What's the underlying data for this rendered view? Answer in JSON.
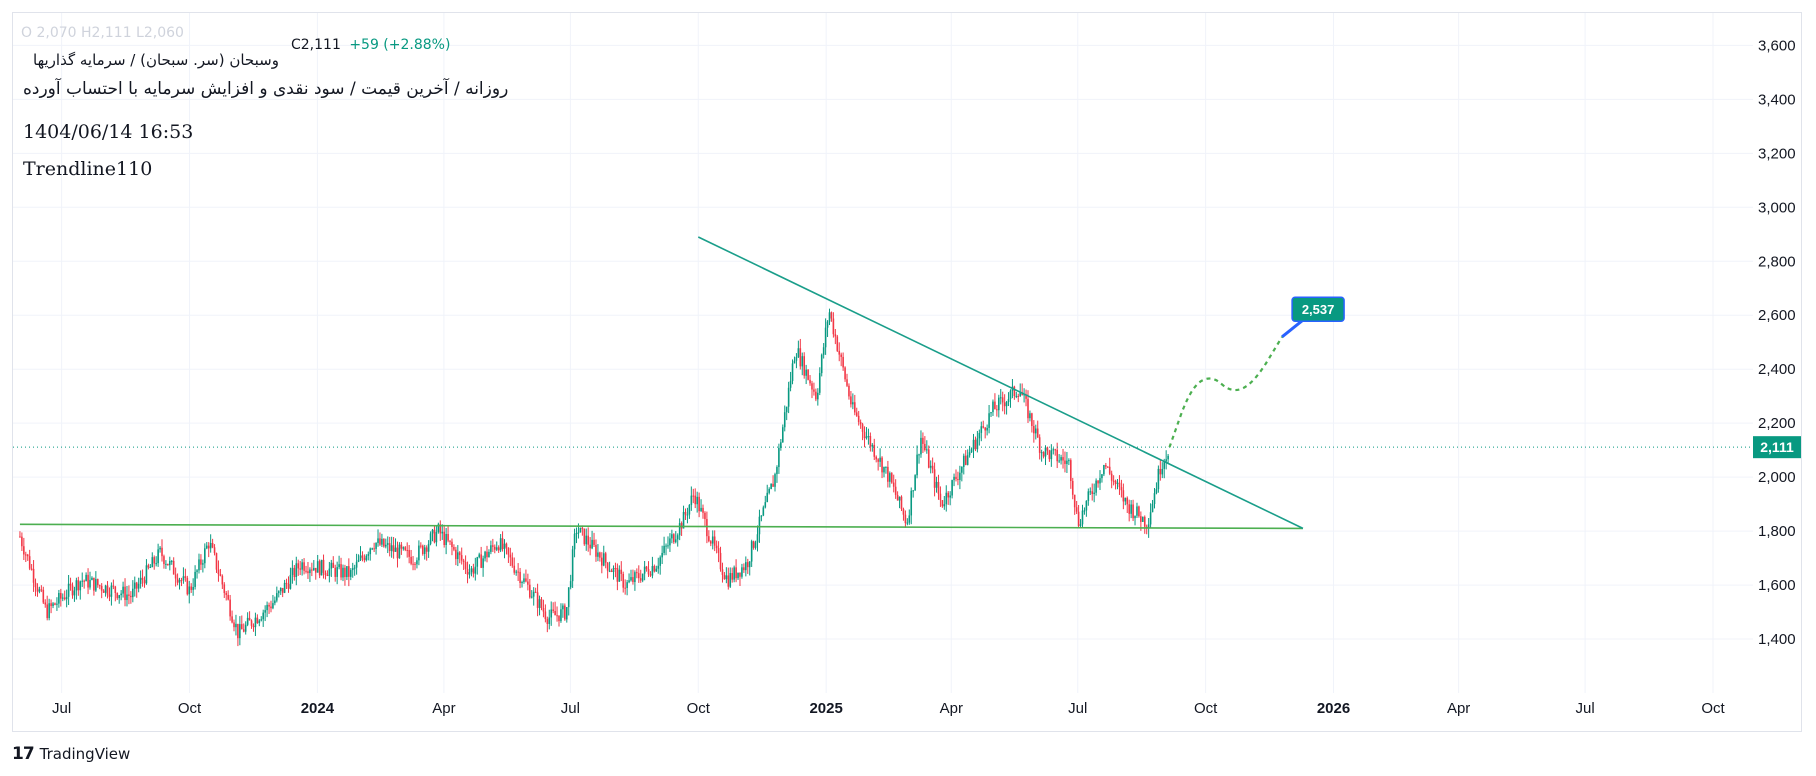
{
  "header": {
    "symbol_title": "وسبحان (سر. سبحان) / سرمایه گذاریها",
    "ohlc_faded": "O 2,070 H2,111 L2,060",
    "close_label": "C2,111",
    "change": "+59 (+2.88%)",
    "subtitle": "روزانه / آخرین قیمت / سود نقدی و افزایش سرمایه با احتساب آورده",
    "timestamp": "1404/06/14 16:53",
    "author": "Trendline110"
  },
  "branding": {
    "logo_mark": "17",
    "logo_text": "TradingView"
  },
  "colors": {
    "up": "#089981",
    "down": "#f23645",
    "trend": "#1a9e8a",
    "support": "#4caf50",
    "forecast": "#4caf50",
    "price_tag": "#089981",
    "target_tag": "#089981",
    "target_border": "#2962ff",
    "grid": "#f0f3fa"
  },
  "chart_data": {
    "type": "candlestick",
    "title": "",
    "y_axis": {
      "ticks": [
        1400,
        1600,
        1800,
        2000,
        2200,
        2400,
        2600,
        2800,
        3000,
        3200,
        3400,
        3600
      ],
      "range": [
        1200,
        3720
      ]
    },
    "x_axis": {
      "ticks": [
        {
          "label": "Jul",
          "date": "2023-07-01",
          "bold": false
        },
        {
          "label": "Oct",
          "date": "2023-10-01",
          "bold": false
        },
        {
          "label": "2024",
          "date": "2024-01-01",
          "bold": true
        },
        {
          "label": "Apr",
          "date": "2024-04-01",
          "bold": false
        },
        {
          "label": "Jul",
          "date": "2024-07-01",
          "bold": false
        },
        {
          "label": "Oct",
          "date": "2024-10-01",
          "bold": false
        },
        {
          "label": "2025",
          "date": "2025-01-01",
          "bold": true
        },
        {
          "label": "Apr",
          "date": "2025-04-01",
          "bold": false
        },
        {
          "label": "Jul",
          "date": "2025-07-01",
          "bold": false
        },
        {
          "label": "Oct",
          "date": "2025-10-01",
          "bold": false
        },
        {
          "label": "2026",
          "date": "2026-01-01",
          "bold": true
        },
        {
          "label": "Apr",
          "date": "2026-04-01",
          "bold": false
        },
        {
          "label": "Jul",
          "date": "2026-07-01",
          "bold": false
        },
        {
          "label": "Oct",
          "date": "2026-10-01",
          "bold": false
        }
      ]
    },
    "price_path": [
      {
        "date": "2023-06-01",
        "price": 1780
      },
      {
        "date": "2023-06-20",
        "price": 1500
      },
      {
        "date": "2023-07-15",
        "price": 1620
      },
      {
        "date": "2023-08-20",
        "price": 1560
      },
      {
        "date": "2023-09-10",
        "price": 1720
      },
      {
        "date": "2023-10-01",
        "price": 1580
      },
      {
        "date": "2023-10-15",
        "price": 1760
      },
      {
        "date": "2023-11-05",
        "price": 1420
      },
      {
        "date": "2023-12-01",
        "price": 1540
      },
      {
        "date": "2023-12-20",
        "price": 1680
      },
      {
        "date": "2024-01-25",
        "price": 1640
      },
      {
        "date": "2024-02-10",
        "price": 1760
      },
      {
        "date": "2024-03-10",
        "price": 1700
      },
      {
        "date": "2024-03-28",
        "price": 1800
      },
      {
        "date": "2024-04-20",
        "price": 1650
      },
      {
        "date": "2024-05-10",
        "price": 1760
      },
      {
        "date": "2024-06-15",
        "price": 1480
      },
      {
        "date": "2024-06-28",
        "price": 1500
      },
      {
        "date": "2024-07-05",
        "price": 1810
      },
      {
        "date": "2024-08-10",
        "price": 1600
      },
      {
        "date": "2024-09-01",
        "price": 1680
      },
      {
        "date": "2024-09-20",
        "price": 1840
      },
      {
        "date": "2024-09-28",
        "price": 1940
      },
      {
        "date": "2024-10-15",
        "price": 1700
      },
      {
        "date": "2024-10-22",
        "price": 1620
      },
      {
        "date": "2024-11-05",
        "price": 1680
      },
      {
        "date": "2024-11-25",
        "price": 2000
      },
      {
        "date": "2024-12-10",
        "price": 2480
      },
      {
        "date": "2024-12-25",
        "price": 2300
      },
      {
        "date": "2025-01-03",
        "price": 2620
      },
      {
        "date": "2025-01-20",
        "price": 2250
      },
      {
        "date": "2025-02-15",
        "price": 2000
      },
      {
        "date": "2025-02-28",
        "price": 1830
      },
      {
        "date": "2025-03-10",
        "price": 2150
      },
      {
        "date": "2025-03-25",
        "price": 1900
      },
      {
        "date": "2025-04-15",
        "price": 2100
      },
      {
        "date": "2025-05-01",
        "price": 2250
      },
      {
        "date": "2025-05-20",
        "price": 2330
      },
      {
        "date": "2025-06-05",
        "price": 2100
      },
      {
        "date": "2025-06-25",
        "price": 2050
      },
      {
        "date": "2025-07-01",
        "price": 1830
      },
      {
        "date": "2025-07-20",
        "price": 2050
      },
      {
        "date": "2025-08-05",
        "price": 1900
      },
      {
        "date": "2025-08-20",
        "price": 1830
      },
      {
        "date": "2025-08-30",
        "price": 2050
      },
      {
        "date": "2025-09-05",
        "price": 2111
      }
    ],
    "resistance_trendline": {
      "start": {
        "date": "2024-10-01",
        "price": 2890
      },
      "end": {
        "date": "2025-12-10",
        "price": 1810
      }
    },
    "support_line": {
      "start": {
        "date": "2023-06-01",
        "price": 1825
      },
      "end": {
        "date": "2025-12-10",
        "price": 1810
      }
    },
    "forecast_path": [
      {
        "date": "2025-09-05",
        "price": 2111
      },
      {
        "date": "2025-09-20",
        "price": 2330
      },
      {
        "date": "2025-10-05",
        "price": 2380
      },
      {
        "date": "2025-10-20",
        "price": 2310
      },
      {
        "date": "2025-11-05",
        "price": 2350
      },
      {
        "date": "2025-11-25",
        "price": 2520
      }
    ],
    "current_price": {
      "value": 2111,
      "label": "2,111"
    },
    "target": {
      "value": 2537,
      "label": "2,537"
    }
  }
}
